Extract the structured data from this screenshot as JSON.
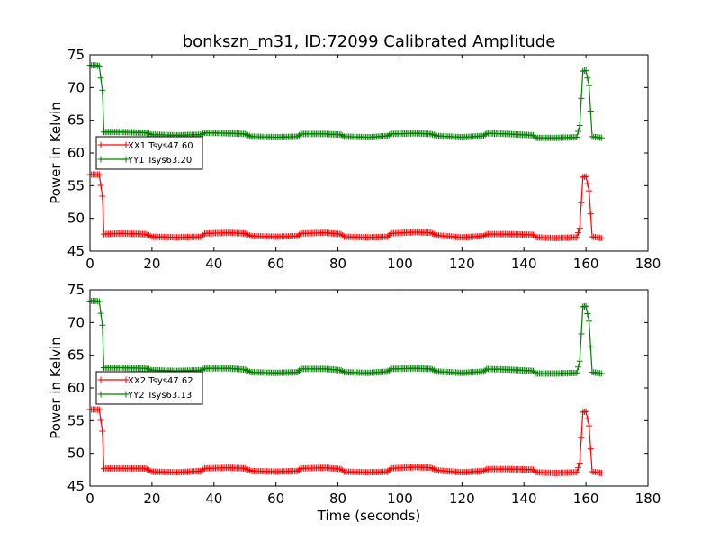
{
  "chart_data": [
    {
      "type": "line",
      "title": "bonkszn_m31, ID:72099 Calibrated Amplitude",
      "xlabel": "",
      "ylabel": "Power in Kelvin",
      "xlim": [
        0,
        180
      ],
      "ylim": [
        45,
        75
      ],
      "x_ticks": [
        "0",
        "20",
        "40",
        "60",
        "80",
        "100",
        "120",
        "140",
        "160",
        "180"
      ],
      "y_ticks": [
        "45",
        "50",
        "55",
        "60",
        "65",
        "70",
        "75"
      ],
      "grid": false,
      "legend_position": "center-left",
      "marker": "+",
      "series": [
        {
          "name": "XX1 Tsys47.60",
          "color": "#ff0000",
          "points": [
            [
              0,
              56.7
            ],
            [
              1,
              56.7
            ],
            [
              2,
              56.7
            ],
            [
              3,
              56.7
            ],
            [
              4,
              53.4
            ],
            [
              4.5,
              47.6
            ],
            [
              10,
              47.7
            ],
            [
              18,
              47.6
            ],
            [
              20,
              47.2
            ],
            [
              28,
              47.1
            ],
            [
              36,
              47.2
            ],
            [
              37,
              47.7
            ],
            [
              45,
              47.8
            ],
            [
              50,
              47.7
            ],
            [
              52,
              47.3
            ],
            [
              60,
              47.2
            ],
            [
              67,
              47.3
            ],
            [
              68,
              47.7
            ],
            [
              76,
              47.8
            ],
            [
              81,
              47.6
            ],
            [
              82,
              47.2
            ],
            [
              90,
              47.1
            ],
            [
              96,
              47.2
            ],
            [
              97,
              47.7
            ],
            [
              105,
              47.9
            ],
            [
              110,
              47.8
            ],
            [
              112,
              47.4
            ],
            [
              120,
              47.1
            ],
            [
              127,
              47.3
            ],
            [
              128,
              47.6
            ],
            [
              135,
              47.6
            ],
            [
              143,
              47.5
            ],
            [
              144,
              47.1
            ],
            [
              150,
              47.0
            ],
            [
              157,
              47.1
            ],
            [
              158,
              48.5
            ],
            [
              159,
              56.3
            ],
            [
              160,
              56.4
            ],
            [
              161,
              54.2
            ],
            [
              162,
              47.2
            ],
            [
              165,
              47.0
            ]
          ]
        },
        {
          "name": "YY1 Tsys63.20",
          "color": "#008000",
          "points": [
            [
              0,
              73.4
            ],
            [
              1,
              73.4
            ],
            [
              2,
              73.4
            ],
            [
              3,
              73.3
            ],
            [
              4,
              69.6
            ],
            [
              4.5,
              63.2
            ],
            [
              10,
              63.2
            ],
            [
              18,
              63.1
            ],
            [
              20,
              62.8
            ],
            [
              28,
              62.7
            ],
            [
              36,
              62.8
            ],
            [
              37,
              63.1
            ],
            [
              45,
              63.0
            ],
            [
              50,
              62.9
            ],
            [
              52,
              62.5
            ],
            [
              60,
              62.4
            ],
            [
              67,
              62.5
            ],
            [
              68,
              62.9
            ],
            [
              76,
              62.9
            ],
            [
              81,
              62.8
            ],
            [
              82,
              62.5
            ],
            [
              90,
              62.4
            ],
            [
              96,
              62.6
            ],
            [
              97,
              62.9
            ],
            [
              105,
              63.0
            ],
            [
              110,
              62.9
            ],
            [
              112,
              62.6
            ],
            [
              120,
              62.4
            ],
            [
              127,
              62.6
            ],
            [
              128,
              63.0
            ],
            [
              135,
              62.9
            ],
            [
              143,
              62.7
            ],
            [
              144,
              62.3
            ],
            [
              150,
              62.3
            ],
            [
              157,
              62.4
            ],
            [
              158,
              64.2
            ],
            [
              159,
              72.5
            ],
            [
              160,
              72.6
            ],
            [
              161,
              70.3
            ],
            [
              162,
              62.5
            ],
            [
              165,
              62.3
            ]
          ]
        }
      ]
    },
    {
      "type": "line",
      "title": "",
      "xlabel": "Time (seconds)",
      "ylabel": "Power in Kelvin",
      "xlim": [
        0,
        180
      ],
      "ylim": [
        45,
        75
      ],
      "x_ticks": [
        "0",
        "20",
        "40",
        "60",
        "80",
        "100",
        "120",
        "140",
        "160",
        "180"
      ],
      "y_ticks": [
        "45",
        "50",
        "55",
        "60",
        "65",
        "70",
        "75"
      ],
      "grid": false,
      "legend_position": "center-left",
      "marker": "+",
      "series": [
        {
          "name": "XX2 Tsys47.62",
          "color": "#ff0000",
          "points": [
            [
              0,
              56.7
            ],
            [
              1,
              56.7
            ],
            [
              2,
              56.7
            ],
            [
              3,
              56.7
            ],
            [
              4,
              53.4
            ],
            [
              4.5,
              47.7
            ],
            [
              10,
              47.7
            ],
            [
              18,
              47.7
            ],
            [
              20,
              47.2
            ],
            [
              28,
              47.1
            ],
            [
              36,
              47.3
            ],
            [
              37,
              47.7
            ],
            [
              45,
              47.8
            ],
            [
              50,
              47.7
            ],
            [
              52,
              47.3
            ],
            [
              60,
              47.2
            ],
            [
              67,
              47.3
            ],
            [
              68,
              47.7
            ],
            [
              76,
              47.8
            ],
            [
              81,
              47.6
            ],
            [
              82,
              47.2
            ],
            [
              90,
              47.1
            ],
            [
              96,
              47.2
            ],
            [
              97,
              47.7
            ],
            [
              105,
              47.9
            ],
            [
              110,
              47.8
            ],
            [
              112,
              47.4
            ],
            [
              120,
              47.1
            ],
            [
              127,
              47.3
            ],
            [
              128,
              47.6
            ],
            [
              135,
              47.6
            ],
            [
              143,
              47.5
            ],
            [
              144,
              47.1
            ],
            [
              150,
              47.0
            ],
            [
              157,
              47.1
            ],
            [
              158,
              48.5
            ],
            [
              159,
              56.3
            ],
            [
              160,
              56.4
            ],
            [
              161,
              54.2
            ],
            [
              162,
              47.2
            ],
            [
              165,
              47.0
            ]
          ]
        },
        {
          "name": "YY2 Tsys63.13",
          "color": "#008000",
          "points": [
            [
              0,
              73.3
            ],
            [
              1,
              73.3
            ],
            [
              2,
              73.3
            ],
            [
              3,
              73.2
            ],
            [
              4,
              69.6
            ],
            [
              4.5,
              63.1
            ],
            [
              10,
              63.1
            ],
            [
              18,
              63.0
            ],
            [
              20,
              62.7
            ],
            [
              28,
              62.6
            ],
            [
              36,
              62.7
            ],
            [
              37,
              63.0
            ],
            [
              45,
              63.0
            ],
            [
              50,
              62.8
            ],
            [
              52,
              62.4
            ],
            [
              60,
              62.3
            ],
            [
              67,
              62.4
            ],
            [
              68,
              62.9
            ],
            [
              76,
              62.9
            ],
            [
              81,
              62.7
            ],
            [
              82,
              62.4
            ],
            [
              90,
              62.3
            ],
            [
              96,
              62.5
            ],
            [
              97,
              62.9
            ],
            [
              105,
              63.0
            ],
            [
              110,
              62.9
            ],
            [
              112,
              62.5
            ],
            [
              120,
              62.3
            ],
            [
              127,
              62.5
            ],
            [
              128,
              62.9
            ],
            [
              135,
              62.8
            ],
            [
              143,
              62.6
            ],
            [
              144,
              62.2
            ],
            [
              150,
              62.2
            ],
            [
              157,
              62.3
            ],
            [
              158,
              64.1
            ],
            [
              159,
              72.4
            ],
            [
              160,
              72.5
            ],
            [
              161,
              70.2
            ],
            [
              162,
              62.4
            ],
            [
              165,
              62.2
            ]
          ]
        }
      ]
    }
  ]
}
